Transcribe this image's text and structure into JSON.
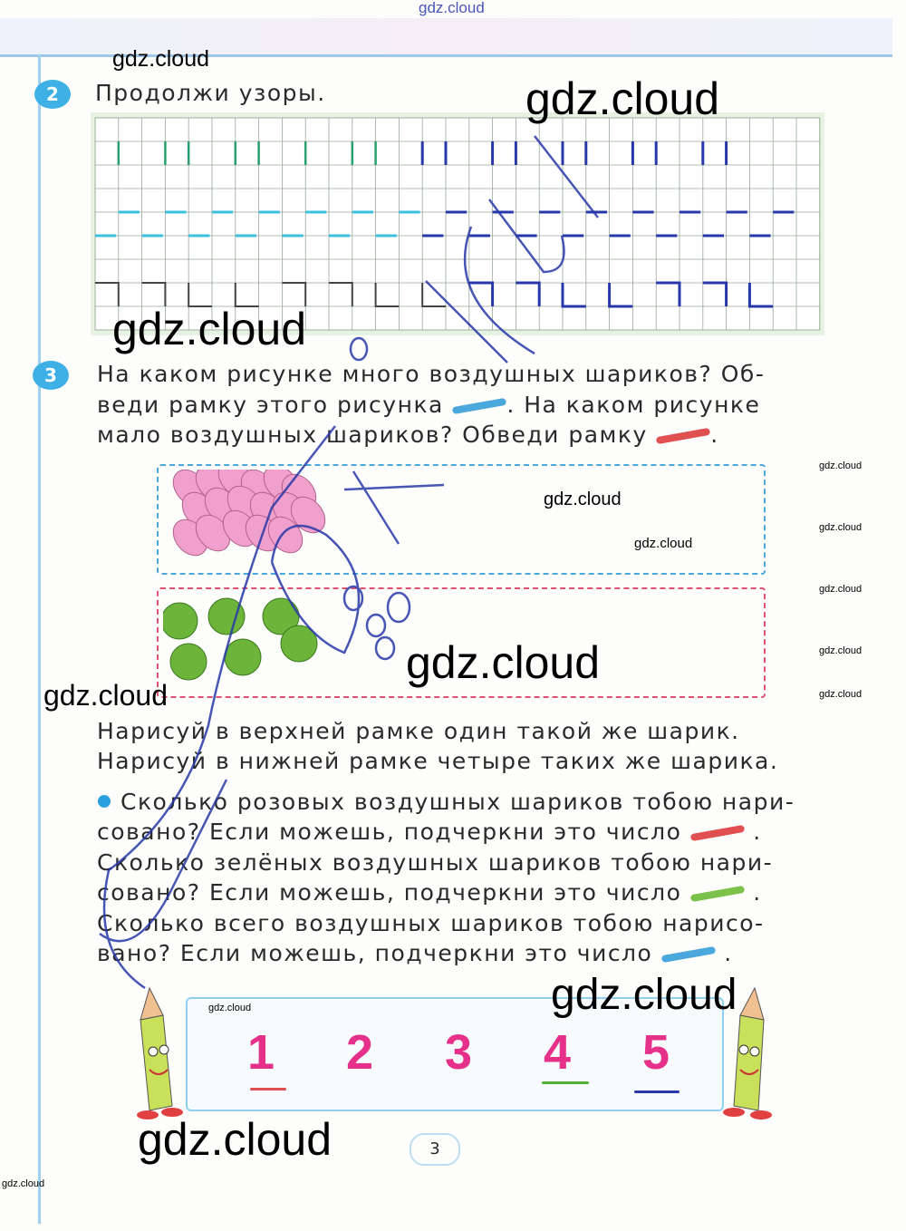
{
  "header": {
    "watermark": "gdz.cloud"
  },
  "task2": {
    "number": "2",
    "title": "Продолжи узоры."
  },
  "task3": {
    "number": "3",
    "lines": [
      "На каком рисунке много воздушных шариков? Об-",
      "веди рамку этого рисунка",
      ". На каком рисунке",
      "мало воздушных шариков? Обведи рамку",
      "."
    ],
    "draw_lines": [
      "Нарисуй в верхней рамке один такой же шарик.",
      "Нарисуй в нижней рамке четыре таких же шарика."
    ],
    "questions": [
      "Сколько розовых воздушных шариков тобою нари-",
      "совано? Если можешь, подчеркни это число",
      "Сколько зелёных воздушных шариков тобою нари-",
      "совано? Если можешь, подчеркни это число",
      "Сколько всего воздушных шариков тобою нарисо-",
      "вано? Если можешь, подчеркни это число"
    ],
    "numbers": [
      "1",
      "2",
      "3",
      "4",
      "5"
    ],
    "underlined": {
      "1": "red",
      "4": "green",
      "5": "blue"
    }
  },
  "colors": {
    "blue_pencil": "#4aa8dc",
    "red_pencil": "#e05050",
    "green_pencil": "#7cc24a",
    "pink_digit": "#e5318a",
    "pink_balloon": "#f0a0cc",
    "green_balloon": "#6db43a",
    "pen": "#2838a8"
  },
  "page_number": "3",
  "watermarks": [
    "gdz.cloud",
    "gdz.cloud",
    "gdz.cloud",
    "gdz.cloud",
    "gdz.cloud",
    "gdz.cloud",
    "gdz.cloud",
    "gdz.cloud",
    "gdz.cloud",
    "gdz.cloud",
    "gdz.cloud",
    "gdz.cloud",
    "gdz.cloud",
    "gdz.cloud",
    "gdz.cloud",
    "gdz.cloud"
  ]
}
